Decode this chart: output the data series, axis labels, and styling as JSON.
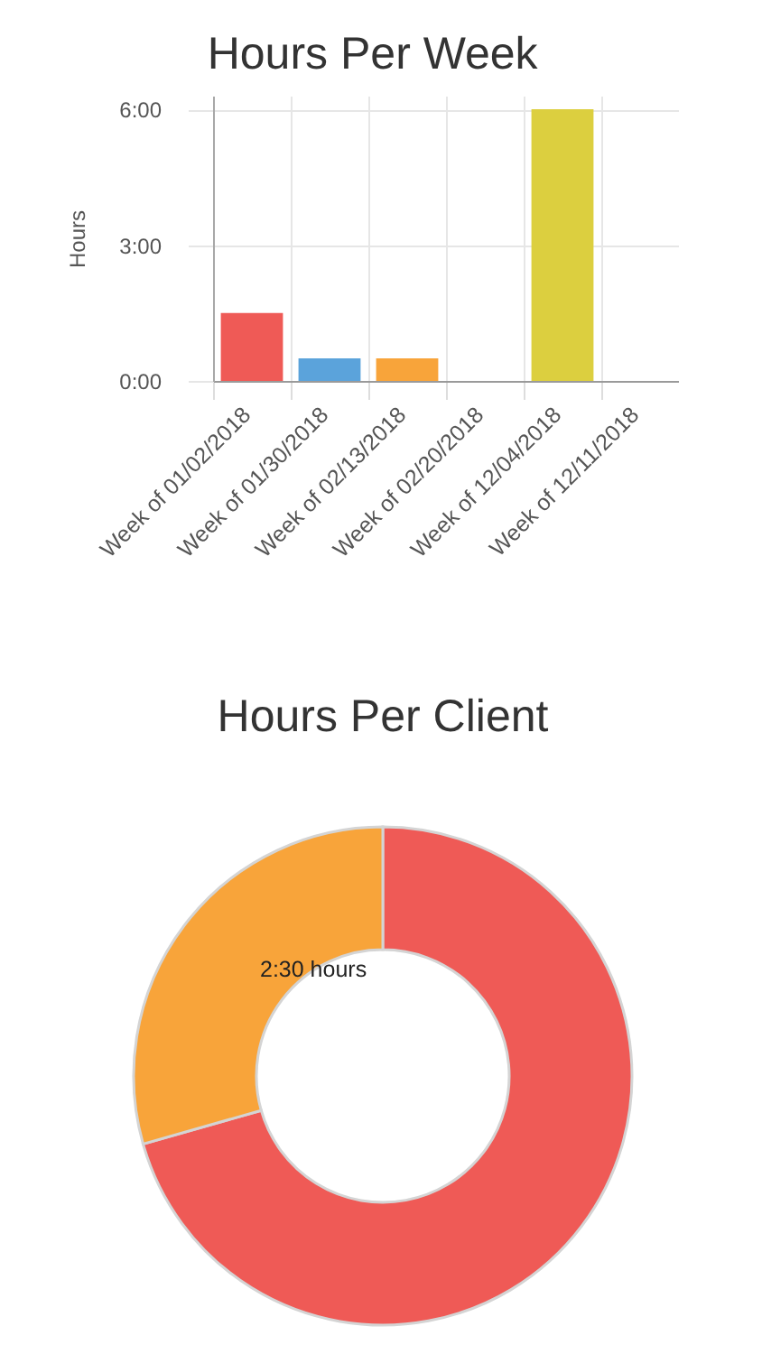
{
  "chart_data": [
    {
      "type": "bar",
      "title": "Hours Per Week",
      "ylabel": "Hours",
      "categories": [
        "Week of 01/02/2018",
        "Week of 01/30/2018",
        "Week of 02/13/2018",
        "Week of 02/20/2018",
        "Week of 12/04/2018",
        "Week of 12/11/2018"
      ],
      "values": [
        1.5,
        0.5,
        0.5,
        0,
        6,
        0
      ],
      "colors": [
        "#ef5a56",
        "#5ba3db",
        "#f8a43a",
        null,
        "#dccf3f",
        null
      ],
      "ylim": [
        0,
        6.3
      ],
      "yticks": [
        {
          "value": 0,
          "label": "0:00"
        },
        {
          "value": 3,
          "label": "3:00"
        },
        {
          "value": 6,
          "label": "6:00"
        }
      ],
      "grid": true
    },
    {
      "type": "donut",
      "title": "Hours Per Client",
      "categories": [
        null,
        null
      ],
      "values": [
        70.6,
        29.4
      ],
      "colors": [
        "#ef5a56",
        "#f8a43a"
      ],
      "annotations": [
        "2:30 hours"
      ]
    }
  ]
}
